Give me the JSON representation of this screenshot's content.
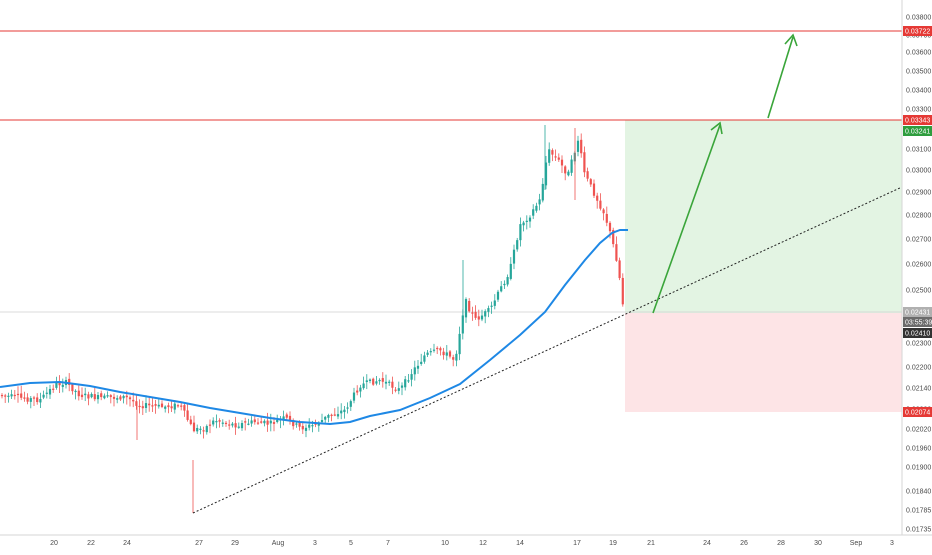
{
  "chart_data": {
    "type": "candlestick",
    "y_axis": {
      "ticks": [
        "0.03800",
        "0.03700",
        "0.03600",
        "0.03500",
        "0.03400",
        "0.03300",
        "0.03200",
        "0.03100",
        "0.03000",
        "0.02900",
        "0.02800",
        "0.02700",
        "0.02600",
        "0.02500",
        "0.02400",
        "0.02300",
        "0.02200",
        "0.02140",
        "0.02080",
        "0.02020",
        "0.01960",
        "0.01900",
        "0.01840",
        "0.01785",
        "0.01735"
      ],
      "scale": "log"
    },
    "x_axis": {
      "ticks": [
        "20",
        "22",
        "24",
        "27",
        "29",
        "Aug",
        "3",
        "5",
        "7",
        "10",
        "12",
        "14",
        "17",
        "19",
        "21",
        "24",
        "26",
        "28",
        "30",
        "Sep",
        "3"
      ]
    },
    "price_tags": [
      {
        "label": "0.03722",
        "color": "#e53935"
      },
      {
        "label": "0.03343",
        "color": "#e53935"
      },
      {
        "label": "0.03241",
        "color": "#2e9d3e"
      },
      {
        "label": "0.02431",
        "color": "#b0b0b0"
      },
      {
        "label": "03:55:39",
        "color": "#6b6b6b"
      },
      {
        "label": "0.02410",
        "color": "#333333"
      },
      {
        "label": "0.02074",
        "color": "#e53935"
      }
    ],
    "horizontal_lines": [
      0.03722,
      0.03343
    ],
    "last_price": 0.0241,
    "target": 0.03241,
    "stop": 0.02074,
    "colors": {
      "up": "#26a69a",
      "down": "#ef5350",
      "ma": "#1e88e5",
      "resistance": "#e53935",
      "arrow": "#3aa53a",
      "profit_zone": "#e3f4e3",
      "loss_zone": "#fde4e6"
    }
  }
}
